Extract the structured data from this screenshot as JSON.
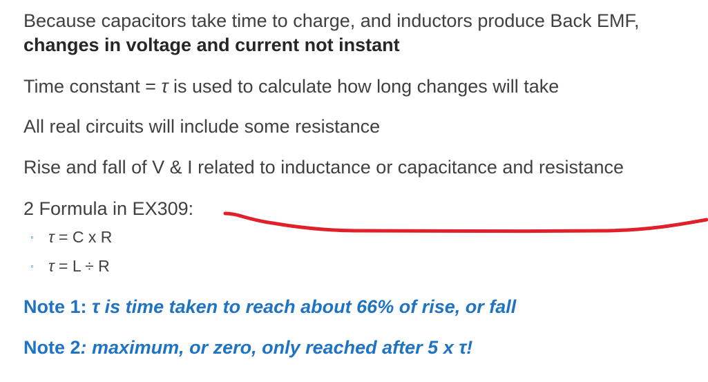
{
  "slide": {
    "intro_line1": "Because capacitors take time to charge, and inductors produce Back EMF,",
    "intro_line2": "changes in voltage and current not instant",
    "time_constant": {
      "prefix": "Time constant = ",
      "symbol": "τ",
      "suffix": " is used to calculate how long changes will take"
    },
    "resistance_text": "All real circuits will include some resistance",
    "rise_fall_text": "Rise and fall of V & I related to inductance or capacitance and resistance",
    "formula_heading": "2 Formula in EX309:",
    "bullet_marker": "◦",
    "formulas": [
      {
        "symbol": "τ",
        "expr": " = C x R"
      },
      {
        "symbol": "τ",
        "expr": " = L ÷ R"
      }
    ],
    "note1": {
      "label": "Note 1: ",
      "symbol": "τ",
      "text": " is time taken to reach about 66% of rise, or fall"
    },
    "note2": {
      "label": "Note 2",
      "text": ": maximum, or zero, only reached after 5 x τ!"
    }
  },
  "colors": {
    "body_text": "#404040",
    "note_text": "#1f73c3",
    "annotation_stroke": "#e0202a"
  }
}
